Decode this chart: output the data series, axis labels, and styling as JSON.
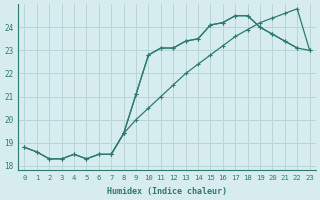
{
  "xlabel": "Humidex (Indice chaleur)",
  "bg_color": "#d7ecee",
  "grid_color": "#b8d5d8",
  "line_color": "#2d7a6e",
  "yticks": [
    18,
    19,
    20,
    21,
    22,
    23,
    24
  ],
  "xticks": [
    0,
    1,
    2,
    3,
    4,
    5,
    6,
    7,
    8,
    9,
    10,
    11,
    12,
    13,
    14,
    15,
    16,
    17,
    18,
    19,
    20,
    21,
    22,
    23
  ],
  "line1_x": [
    0,
    1,
    2,
    3,
    4,
    5,
    6,
    7,
    8,
    9,
    10,
    11,
    12,
    13,
    14,
    15,
    16,
    17,
    18,
    19,
    20,
    21,
    22
  ],
  "line1_y": [
    18.8,
    18.6,
    18.3,
    18.3,
    18.5,
    18.3,
    18.5,
    18.5,
    19.4,
    21.1,
    22.8,
    23.1,
    23.1,
    23.4,
    23.5,
    24.1,
    24.2,
    24.5,
    24.5,
    24.0,
    23.7,
    23.4,
    23.1
  ],
  "line2_x": [
    0,
    1,
    2,
    3,
    4,
    5,
    6,
    7,
    8,
    9,
    10,
    11,
    12,
    13,
    14,
    15,
    16,
    17,
    18,
    19,
    20,
    21,
    22,
    23
  ],
  "line2_y": [
    18.8,
    18.6,
    18.3,
    18.3,
    18.5,
    18.3,
    18.5,
    18.5,
    19.4,
    20.0,
    20.5,
    21.0,
    21.5,
    22.0,
    22.4,
    22.8,
    23.2,
    23.6,
    23.9,
    24.2,
    24.4,
    24.6,
    24.8,
    23.0
  ],
  "line3_x": [
    7,
    8,
    9,
    10,
    11,
    12,
    13,
    14,
    15,
    16,
    17,
    18,
    19,
    20,
    21,
    22,
    23
  ],
  "line3_y": [
    18.5,
    19.4,
    21.1,
    22.8,
    23.1,
    23.1,
    23.4,
    23.5,
    24.1,
    24.2,
    24.5,
    24.5,
    24.0,
    23.7,
    23.4,
    23.1,
    23.0
  ]
}
